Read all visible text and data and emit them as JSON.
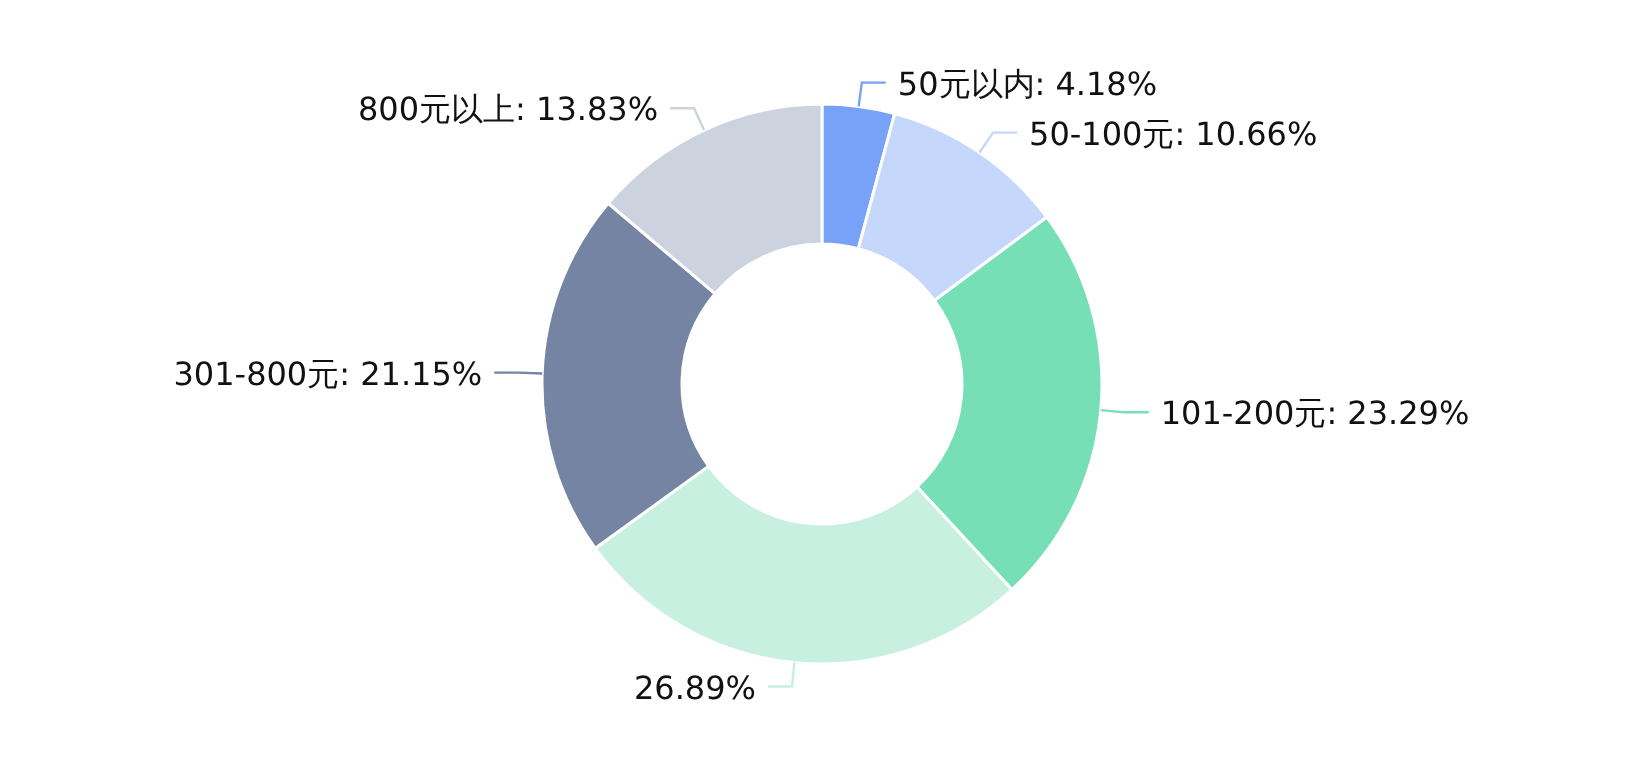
{
  "chart_data": {
    "type": "donut",
    "categories": [
      "50元以内",
      "50-100元",
      "101-200元",
      null,
      "301-800元",
      "800元以上"
    ],
    "values": [
      4.18,
      10.66,
      23.29,
      26.89,
      21.15,
      13.83
    ],
    "value_labels": [
      ": 4.18%",
      ": 10.66%",
      ": 23.29%",
      "26.89%",
      ": 21.15%",
      ": 13.83%"
    ],
    "colors": [
      "#77a2f7",
      "#c5d8fb",
      "#77dfb5",
      "#c8f0e0",
      "#7584a3",
      "#cdd3de"
    ]
  }
}
